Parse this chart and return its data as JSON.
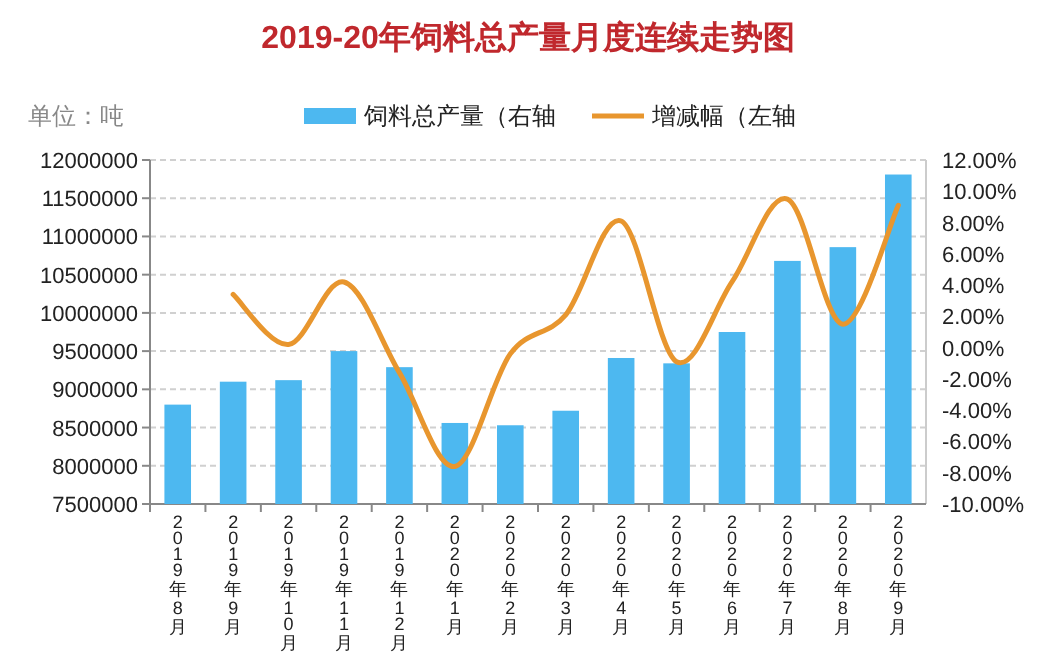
{
  "chart_data": {
    "type": "bar",
    "title": "2019-20年饲料总产量月度连续走势图",
    "ylabel": "单位：吨",
    "categories": [
      "2019年8月",
      "2019年9月",
      "2019年10月",
      "2019年11月",
      "2019年12月",
      "2020年1月",
      "2020年2月",
      "2020年3月",
      "2020年4月",
      "2020年5月",
      "2020年6月",
      "2020年7月",
      "2020年8月",
      "2020年9月"
    ],
    "series": [
      {
        "name": "饲料总产量（右轴",
        "color": "#4db8f0",
        "values": [
          8800000,
          9100000,
          9120000,
          9500000,
          9290000,
          8560000,
          8530000,
          8720000,
          9410000,
          9340000,
          9750000,
          10680000,
          10860000,
          11810000
        ]
      },
      {
        "name": "增减幅（左轴",
        "type": "line",
        "axis": "y2",
        "color": "#e8962e",
        "values": [
          null,
          3.4,
          0.2,
          4.2,
          -1.6,
          -7.6,
          -0.4,
          2.1,
          8.1,
          -0.9,
          4.2,
          9.5,
          1.5,
          9.1
        ]
      }
    ],
    "ylim": [
      7500000,
      12000000
    ],
    "yticks": [
      7500000,
      8000000,
      8500000,
      9000000,
      9500000,
      10000000,
      10500000,
      11000000,
      11500000,
      12000000
    ],
    "y2lim": [
      -10,
      12
    ],
    "y2ticks": [
      {
        "value": -10,
        "label": "-10.00%"
      },
      {
        "value": -8,
        "label": "-8.00%"
      },
      {
        "value": -6,
        "label": "-6.00%"
      },
      {
        "value": -4,
        "label": "-4.00%"
      },
      {
        "value": -2,
        "label": "-2.00%"
      },
      {
        "value": 0,
        "label": "0.00%"
      },
      {
        "value": 2,
        "label": "2.00%"
      },
      {
        "value": 4,
        "label": "4.00%"
      },
      {
        "value": 6,
        "label": "6.00%"
      },
      {
        "value": 8,
        "label": "8.00%"
      },
      {
        "value": 10,
        "label": "10.00%"
      },
      {
        "value": 12,
        "label": "12.00%"
      }
    ],
    "grid": "y",
    "legend": "top"
  }
}
